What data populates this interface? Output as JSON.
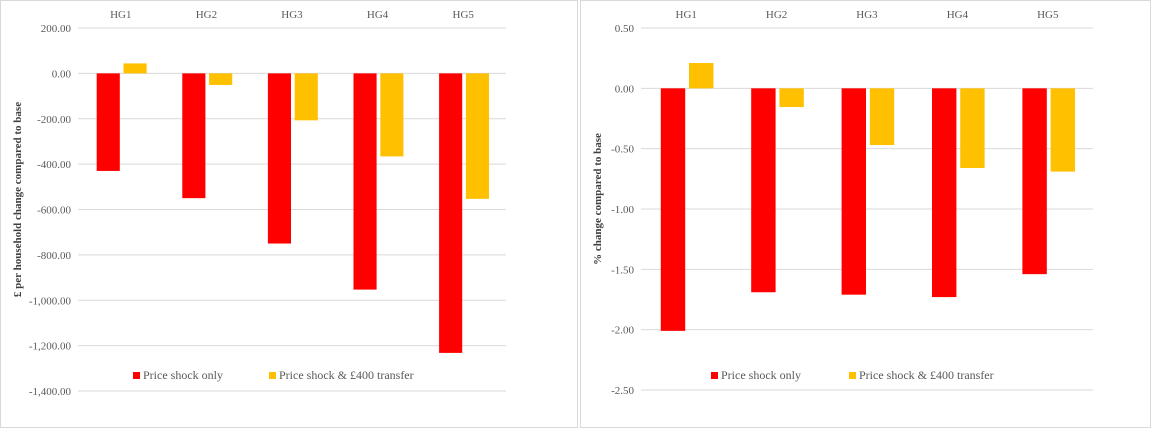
{
  "chart_data": [
    {
      "type": "bar",
      "categories": [
        "HG1",
        "HG2",
        "HG3",
        "HG4",
        "HG5"
      ],
      "series": [
        {
          "name": "Price shock only",
          "color": "#ff0000",
          "values": [
            -430,
            -550,
            -750,
            -953,
            -1232
          ]
        },
        {
          "name": "Price shock & £400 transfer",
          "color": "#ffc000",
          "values": [
            44,
            -51,
            -207,
            -366,
            -553
          ]
        }
      ],
      "title": "",
      "xlabel": "",
      "ylabel": "£ per household change compared to base",
      "ylim": [
        -1400,
        200
      ],
      "yticks": [
        200,
        0,
        -200,
        -400,
        -600,
        -800,
        -1000,
        -1200,
        -1400
      ],
      "ytick_labels": [
        "200.00",
        "0.00",
        "-200.00",
        "-400.00",
        "-600.00",
        "-800.00",
        "-1,000.00",
        "-1,200.00",
        "-1,400.00"
      ],
      "x_axis_position": "top",
      "grid": true,
      "legend": "bottom"
    },
    {
      "type": "bar",
      "categories": [
        "HG1",
        "HG2",
        "HG3",
        "HG4",
        "HG5"
      ],
      "series": [
        {
          "name": "Price shock only",
          "color": "#ff0000",
          "values": [
            -2.01,
            -1.69,
            -1.71,
            -1.73,
            -1.54
          ]
        },
        {
          "name": "Price shock & £400 transfer",
          "color": "#ffc000",
          "values": [
            0.21,
            -0.155,
            -0.47,
            -0.66,
            -0.69
          ]
        }
      ],
      "title": "",
      "xlabel": "",
      "ylabel": "% change compared to base",
      "ylim": [
        -2.5,
        0.5
      ],
      "yticks": [
        0.5,
        0,
        -0.5,
        -1,
        -1.5,
        -2,
        -2.5
      ],
      "ytick_labels": [
        "0.50",
        "0.00",
        "-0.50",
        "-1.00",
        "-1.50",
        "-2.00",
        "-2.50"
      ],
      "x_axis_position": "top",
      "grid": true,
      "legend": "bottom"
    }
  ]
}
